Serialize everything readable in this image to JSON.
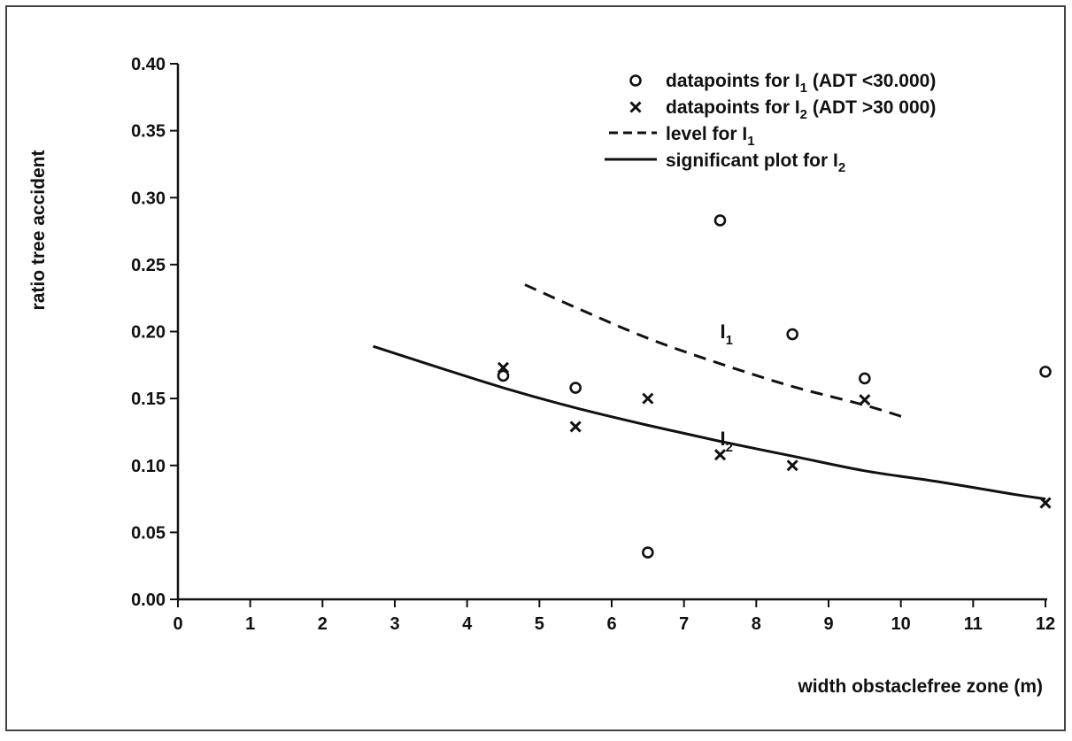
{
  "chart_data": {
    "type": "scatter",
    "title": "",
    "xlabel": "width obstaclefree zone (m)",
    "ylabel": "ratio tree accident",
    "xlim": [
      0,
      12
    ],
    "ylim": [
      0,
      0.4
    ],
    "x_ticks": [
      "0",
      "1",
      "2",
      "3",
      "4",
      "5",
      "6",
      "7",
      "8",
      "9",
      "10",
      "11",
      "12"
    ],
    "y_ticks": [
      "0.00",
      "0.05",
      "0.10",
      "0.15",
      "0.20",
      "0.25",
      "0.30",
      "0.35",
      "0.40"
    ],
    "grid": false,
    "legend_position": "top-right",
    "legend": [
      {
        "marker": "circle",
        "text": "datapoints for I",
        "sub": "1",
        "after": " (ADT <30.000)"
      },
      {
        "marker": "cross",
        "text": "datapoints for I",
        "sub": "2",
        "after": " (ADT >30 000)"
      },
      {
        "marker": "dashed-line",
        "text": "level for I",
        "sub": "1",
        "after": ""
      },
      {
        "marker": "solid-line",
        "text": "significant plot for I",
        "sub": "2",
        "after": ""
      }
    ],
    "series": [
      {
        "kind": "points",
        "marker": "circle",
        "points": [
          [
            4.5,
            0.167
          ],
          [
            5.5,
            0.158
          ],
          [
            6.5,
            0.035
          ],
          [
            7.5,
            0.283
          ],
          [
            8.5,
            0.198
          ],
          [
            9.5,
            0.165
          ],
          [
            12,
            0.17
          ]
        ]
      },
      {
        "kind": "points",
        "marker": "cross",
        "points": [
          [
            4.5,
            0.173
          ],
          [
            5.5,
            0.129
          ],
          [
            6.5,
            0.15
          ],
          [
            7.5,
            0.108
          ],
          [
            8.5,
            0.1
          ],
          [
            9.5,
            0.149
          ],
          [
            12,
            0.072
          ]
        ]
      },
      {
        "kind": "curve",
        "style": "dashed",
        "label": "I",
        "label_sub": "1",
        "points": [
          [
            4.8,
            0.235
          ],
          [
            5.5,
            0.218
          ],
          [
            6.5,
            0.195
          ],
          [
            7.5,
            0.176
          ],
          [
            8.5,
            0.159
          ],
          [
            9.5,
            0.145
          ],
          [
            10.1,
            0.135
          ]
        ]
      },
      {
        "kind": "curve",
        "style": "solid",
        "label": "I",
        "label_sub": "2",
        "points": [
          [
            2.7,
            0.189
          ],
          [
            3.5,
            0.175
          ],
          [
            4.5,
            0.158
          ],
          [
            5.5,
            0.143
          ],
          [
            6.5,
            0.13
          ],
          [
            7.5,
            0.118
          ],
          [
            8.5,
            0.107
          ],
          [
            9.5,
            0.096
          ],
          [
            10.5,
            0.088
          ],
          [
            11.5,
            0.079
          ],
          [
            12,
            0.075
          ]
        ]
      }
    ],
    "curve_label_positions": [
      [
        7.5,
        0.195
      ],
      [
        7.5,
        0.115
      ]
    ],
    "colors": {
      "ink": "#111111",
      "frame": "#444444",
      "background": "#ffffff"
    }
  }
}
